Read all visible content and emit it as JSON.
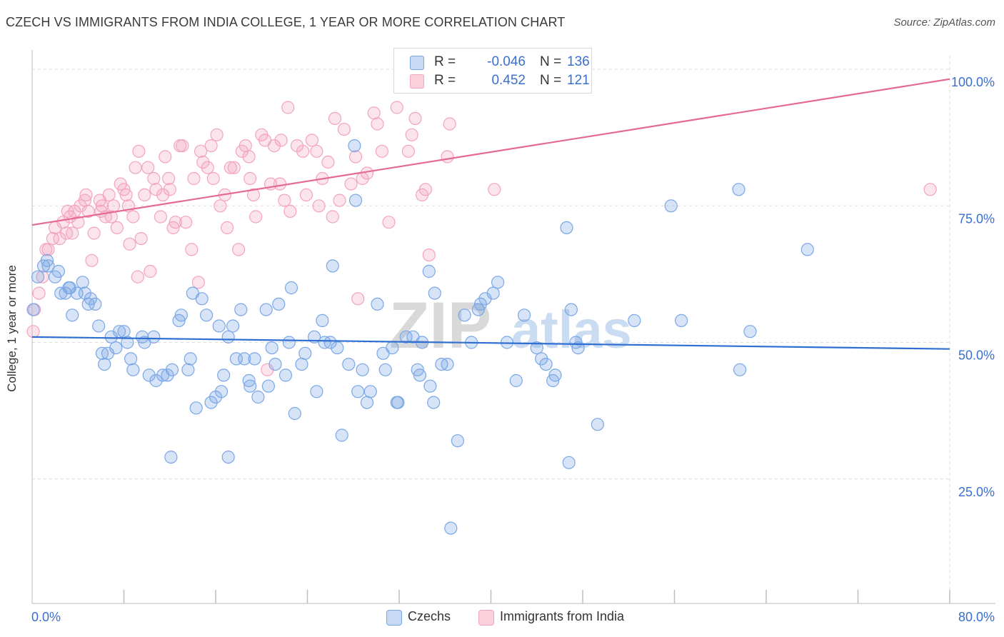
{
  "title": "CZECH VS IMMIGRANTS FROM INDIA COLLEGE, 1 YEAR OR MORE CORRELATION CHART",
  "source": "Source: ZipAtlas.com",
  "watermark": {
    "zip": "ZIP",
    "atlas": "atlas"
  },
  "legend_top": {
    "rows": [
      {
        "r_label": "R =",
        "r_value": "-0.046",
        "n_label": "N =",
        "n_value": "136",
        "color": "#7aa7e6"
      },
      {
        "r_label": "R =",
        "r_value": "0.452",
        "n_label": "N =",
        "n_value": "121",
        "color": "#f3a4bd"
      }
    ]
  },
  "legend_bottom": [
    {
      "label": "Czechs",
      "color": "#7aa7e6"
    },
    {
      "label": "Immigrants from India",
      "color": "#f3a4bd"
    }
  ],
  "chart_data": {
    "type": "scatter",
    "title": "CZECH VS IMMIGRANTS FROM INDIA COLLEGE, 1 YEAR OR MORE CORRELATION CHART",
    "xlabel": "",
    "ylabel": "College, 1 year or more",
    "xlim": [
      0,
      80
    ],
    "ylim": [
      0,
      100
    ],
    "x_tick_labels": [
      "0.0%",
      "80.0%"
    ],
    "y_tick_labels": [
      {
        "value": 25,
        "label": "25.0%"
      },
      {
        "value": 50,
        "label": "50.0%"
      },
      {
        "value": 75,
        "label": "75.0%"
      },
      {
        "value": 100,
        "label": "100.0%"
      }
    ],
    "grid": true,
    "legend": "bottom",
    "series": [
      {
        "name": "Czechs",
        "color": "#7aa7e6",
        "line_color": "#2f6fd1",
        "trend": [
          [
            0,
            51.0
          ],
          [
            80,
            48.8
          ]
        ],
        "points": [
          [
            0.1,
            56
          ],
          [
            0.5,
            62
          ],
          [
            1.0,
            64
          ],
          [
            1.3,
            65
          ],
          [
            1.4,
            64
          ],
          [
            2.0,
            62
          ],
          [
            2.3,
            63
          ],
          [
            2.5,
            59
          ],
          [
            2.9,
            59
          ],
          [
            3.2,
            60
          ],
          [
            3.3,
            60
          ],
          [
            3.5,
            55
          ],
          [
            3.9,
            59
          ],
          [
            4.4,
            61
          ],
          [
            4.6,
            59
          ],
          [
            4.9,
            57
          ],
          [
            5.1,
            58
          ],
          [
            5.5,
            57
          ],
          [
            5.8,
            53
          ],
          [
            6.1,
            48
          ],
          [
            6.3,
            46
          ],
          [
            6.6,
            48
          ],
          [
            6.9,
            51
          ],
          [
            7.3,
            49
          ],
          [
            7.6,
            52
          ],
          [
            8.0,
            52
          ],
          [
            8.3,
            50
          ],
          [
            8.6,
            47
          ],
          [
            8.8,
            45
          ],
          [
            9.6,
            51
          ],
          [
            9.8,
            50
          ],
          [
            10.2,
            44
          ],
          [
            10.6,
            51
          ],
          [
            10.8,
            43
          ],
          [
            11.4,
            44
          ],
          [
            11.8,
            44
          ],
          [
            12.2,
            45
          ],
          [
            12.8,
            54
          ],
          [
            13.0,
            55
          ],
          [
            13.6,
            45
          ],
          [
            13.8,
            47
          ],
          [
            14.0,
            59
          ],
          [
            14.3,
            38
          ],
          [
            14.8,
            58
          ],
          [
            15.2,
            55
          ],
          [
            15.6,
            39
          ],
          [
            16.0,
            40
          ],
          [
            16.3,
            53
          ],
          [
            16.5,
            41
          ],
          [
            16.7,
            44
          ],
          [
            17.1,
            29
          ],
          [
            17.5,
            53
          ],
          [
            17.8,
            47
          ],
          [
            18.2,
            56
          ],
          [
            18.5,
            47
          ],
          [
            18.9,
            43
          ],
          [
            19.0,
            42
          ],
          [
            19.4,
            47
          ],
          [
            19.7,
            40
          ],
          [
            20.4,
            56
          ],
          [
            20.6,
            42
          ],
          [
            20.9,
            49
          ],
          [
            21.2,
            46
          ],
          [
            21.5,
            57
          ],
          [
            22.1,
            44
          ],
          [
            22.4,
            50
          ],
          [
            22.6,
            60
          ],
          [
            22.9,
            37
          ],
          [
            23.5,
            46
          ],
          [
            23.8,
            48
          ],
          [
            24.6,
            51
          ],
          [
            24.8,
            41
          ],
          [
            25.3,
            54
          ],
          [
            25.5,
            50
          ],
          [
            26.0,
            50
          ],
          [
            26.2,
            64
          ],
          [
            26.6,
            49
          ],
          [
            27.0,
            33
          ],
          [
            27.6,
            46
          ],
          [
            28.1,
            86
          ],
          [
            28.2,
            76
          ],
          [
            28.4,
            41
          ],
          [
            28.8,
            45
          ],
          [
            29.2,
            39
          ],
          [
            29.5,
            41
          ],
          [
            30.1,
            57
          ],
          [
            30.6,
            48
          ],
          [
            30.8,
            45
          ],
          [
            31.4,
            49
          ],
          [
            31.8,
            39
          ],
          [
            31.9,
            39
          ],
          [
            32.6,
            51
          ],
          [
            33.2,
            51
          ],
          [
            33.6,
            45
          ],
          [
            33.8,
            44
          ],
          [
            34.0,
            50
          ],
          [
            34.6,
            63
          ],
          [
            34.7,
            42
          ],
          [
            35.0,
            39
          ],
          [
            35.1,
            59
          ],
          [
            35.7,
            46
          ],
          [
            36.2,
            46
          ],
          [
            36.5,
            16
          ],
          [
            37.1,
            32
          ],
          [
            37.7,
            55
          ],
          [
            38.3,
            50
          ],
          [
            38.9,
            56
          ],
          [
            39.1,
            57
          ],
          [
            39.5,
            58
          ],
          [
            40.2,
            59
          ],
          [
            40.6,
            61
          ],
          [
            41.4,
            50
          ],
          [
            42.2,
            43
          ],
          [
            42.9,
            55
          ],
          [
            44.0,
            49
          ],
          [
            44.4,
            47
          ],
          [
            44.8,
            46
          ],
          [
            45.4,
            43
          ],
          [
            45.6,
            44
          ],
          [
            46.6,
            71
          ],
          [
            46.8,
            28
          ],
          [
            47.0,
            56
          ],
          [
            47.4,
            50
          ],
          [
            47.6,
            49
          ],
          [
            49.3,
            35
          ],
          [
            52.5,
            54
          ],
          [
            55.7,
            75
          ],
          [
            56.6,
            54
          ],
          [
            61.6,
            78
          ],
          [
            61.7,
            45
          ],
          [
            62.6,
            52
          ],
          [
            67.6,
            67
          ],
          [
            17.1,
            51
          ],
          [
            12.1,
            29
          ]
        ]
      },
      {
        "name": "Immigrants from India",
        "color": "#f3a4bd",
        "line_color": "#e56a93",
        "trend": [
          [
            0,
            71.5
          ],
          [
            80,
            98.2
          ]
        ],
        "points": [
          [
            0.1,
            52
          ],
          [
            0.2,
            56
          ],
          [
            0.6,
            59
          ],
          [
            0.9,
            62
          ],
          [
            1.2,
            67
          ],
          [
            1.4,
            67
          ],
          [
            1.8,
            69
          ],
          [
            2.0,
            71
          ],
          [
            2.4,
            69
          ],
          [
            2.7,
            72
          ],
          [
            3.1,
            74
          ],
          [
            3.3,
            73
          ],
          [
            3.5,
            70
          ],
          [
            3.7,
            74
          ],
          [
            4.0,
            72
          ],
          [
            4.2,
            75
          ],
          [
            4.7,
            77
          ],
          [
            4.9,
            74
          ],
          [
            5.2,
            65
          ],
          [
            5.4,
            70
          ],
          [
            5.9,
            76
          ],
          [
            6.1,
            75
          ],
          [
            6.4,
            73
          ],
          [
            6.7,
            77
          ],
          [
            6.9,
            73
          ],
          [
            7.1,
            75
          ],
          [
            7.4,
            71
          ],
          [
            7.7,
            79
          ],
          [
            8.0,
            78
          ],
          [
            8.2,
            77
          ],
          [
            8.4,
            75
          ],
          [
            8.8,
            73
          ],
          [
            9.0,
            82
          ],
          [
            9.2,
            62
          ],
          [
            9.5,
            69
          ],
          [
            9.8,
            77
          ],
          [
            10.1,
            82
          ],
          [
            10.3,
            63
          ],
          [
            10.6,
            80
          ],
          [
            10.8,
            78
          ],
          [
            11.2,
            73
          ],
          [
            11.4,
            77
          ],
          [
            11.9,
            80
          ],
          [
            12.3,
            71
          ],
          [
            12.5,
            72
          ],
          [
            12.9,
            86
          ],
          [
            13.1,
            86
          ],
          [
            13.4,
            72
          ],
          [
            13.9,
            67
          ],
          [
            14.1,
            80
          ],
          [
            14.5,
            61
          ],
          [
            14.7,
            85
          ],
          [
            14.9,
            83
          ],
          [
            15.3,
            82
          ],
          [
            15.6,
            86
          ],
          [
            16.1,
            88
          ],
          [
            16.4,
            75
          ],
          [
            16.8,
            77
          ],
          [
            17.0,
            71
          ],
          [
            17.3,
            82
          ],
          [
            17.6,
            82
          ],
          [
            18.0,
            67
          ],
          [
            18.3,
            85
          ],
          [
            18.6,
            86
          ],
          [
            18.9,
            84
          ],
          [
            19.3,
            77
          ],
          [
            19.5,
            73
          ],
          [
            20.0,
            88
          ],
          [
            20.3,
            87
          ],
          [
            20.5,
            45
          ],
          [
            20.8,
            79
          ],
          [
            21.1,
            86
          ],
          [
            21.6,
            79
          ],
          [
            22.0,
            76
          ],
          [
            22.3,
            93
          ],
          [
            22.5,
            74
          ],
          [
            23.1,
            86
          ],
          [
            23.6,
            85
          ],
          [
            23.9,
            77
          ],
          [
            24.4,
            87
          ],
          [
            24.8,
            85
          ],
          [
            25.3,
            80
          ],
          [
            25.8,
            83
          ],
          [
            26.2,
            73
          ],
          [
            26.4,
            91
          ],
          [
            26.8,
            76
          ],
          [
            27.2,
            89
          ],
          [
            27.8,
            79
          ],
          [
            28.2,
            84
          ],
          [
            28.4,
            58
          ],
          [
            28.8,
            80
          ],
          [
            29.2,
            81
          ],
          [
            29.8,
            92
          ],
          [
            30.1,
            90
          ],
          [
            30.5,
            85
          ],
          [
            31.1,
            72
          ],
          [
            31.8,
            93
          ],
          [
            32.8,
            85
          ],
          [
            33.1,
            88
          ],
          [
            33.4,
            91
          ],
          [
            34.0,
            77
          ],
          [
            34.3,
            78
          ],
          [
            34.6,
            66
          ],
          [
            36.2,
            84
          ],
          [
            36.4,
            90
          ],
          [
            40.3,
            78
          ],
          [
            78.3,
            78
          ],
          [
            4.6,
            76
          ],
          [
            6.0,
            74
          ],
          [
            8.5,
            68
          ],
          [
            11.6,
            84
          ],
          [
            12.0,
            78
          ],
          [
            19.0,
            80
          ],
          [
            21.7,
            87
          ],
          [
            25.0,
            75
          ],
          [
            3.0,
            70
          ],
          [
            9.3,
            85
          ],
          [
            15.8,
            80
          ]
        ]
      }
    ]
  }
}
